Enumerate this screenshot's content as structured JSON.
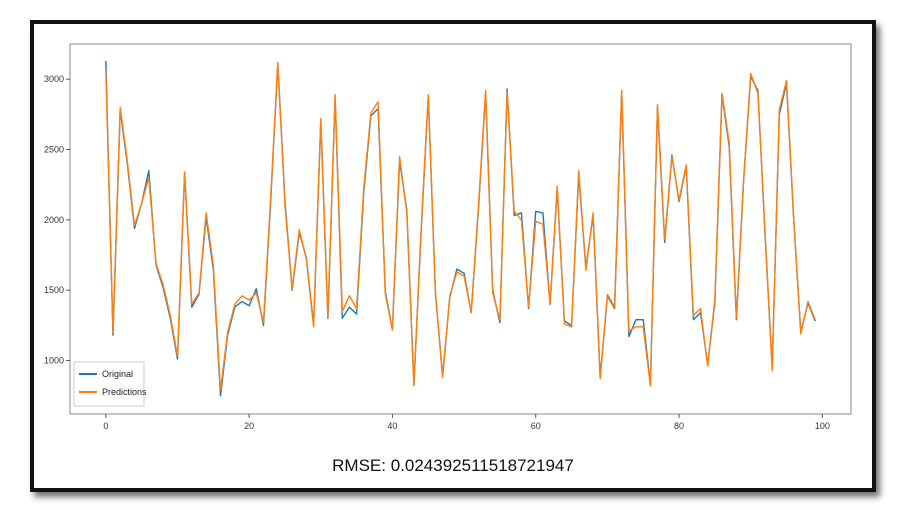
{
  "caption": "RMSE: 0.024392511518721947",
  "chart_data": {
    "type": "line",
    "x": [
      0,
      1,
      2,
      3,
      4,
      5,
      6,
      7,
      8,
      9,
      10,
      11,
      12,
      13,
      14,
      15,
      16,
      17,
      18,
      19,
      20,
      21,
      22,
      23,
      24,
      25,
      26,
      27,
      28,
      29,
      30,
      31,
      32,
      33,
      34,
      35,
      36,
      37,
      38,
      39,
      40,
      41,
      42,
      43,
      44,
      45,
      46,
      47,
      48,
      49,
      50,
      51,
      52,
      53,
      54,
      55,
      56,
      57,
      58,
      59,
      60,
      61,
      62,
      63,
      64,
      65,
      66,
      67,
      68,
      69,
      70,
      71,
      72,
      73,
      74,
      75,
      76,
      77,
      78,
      79,
      80,
      81,
      82,
      83,
      84,
      85,
      86,
      87,
      88,
      89,
      90,
      91,
      92,
      93,
      94,
      95,
      96,
      97,
      98,
      99
    ],
    "series": [
      {
        "name": "Original",
        "color": "#1f77b4",
        "values": [
          3130,
          1180,
          2780,
          2400,
          1940,
          2120,
          2350,
          1680,
          1520,
          1300,
          1010,
          2330,
          1380,
          1470,
          2020,
          1650,
          750,
          1180,
          1380,
          1420,
          1390,
          1510,
          1250,
          2120,
          3110,
          2130,
          1500,
          1910,
          1730,
          1250,
          2700,
          1300,
          2870,
          1300,
          1380,
          1330,
          2200,
          2740,
          2790,
          1490,
          1220,
          2420,
          2070,
          830,
          1910,
          2880,
          1480,
          890,
          1450,
          1650,
          1620,
          1340,
          2070,
          2900,
          1500,
          1270,
          2930,
          2030,
          2050,
          1370,
          2060,
          2050,
          1400,
          2220,
          1280,
          1250,
          2320,
          1660,
          2030,
          880,
          1460,
          1370,
          2910,
          1170,
          1290,
          1290,
          830,
          2800,
          1840,
          2460,
          2130,
          2380,
          1290,
          1340,
          970,
          1420,
          2890,
          2520,
          1290,
          2270,
          3020,
          2920,
          1900,
          950,
          2750,
          2970,
          2000,
          1200,
          1410,
          1280
        ]
      },
      {
        "name": "Predictions",
        "color": "#ff7f0e",
        "values": [
          3060,
          1200,
          2800,
          2420,
          1960,
          2120,
          2300,
          1690,
          1540,
          1320,
          1030,
          2340,
          1400,
          1480,
          2050,
          1680,
          790,
          1200,
          1400,
          1460,
          1430,
          1480,
          1270,
          2150,
          3120,
          2100,
          1510,
          1930,
          1720,
          1240,
          2720,
          1310,
          2890,
          1350,
          1460,
          1370,
          2230,
          2760,
          2840,
          1470,
          1220,
          2450,
          2050,
          820,
          1930,
          2890,
          1490,
          880,
          1460,
          1630,
          1600,
          1340,
          2090,
          2920,
          1480,
          1290,
          2910,
          2060,
          2000,
          1380,
          1990,
          1970,
          1400,
          2240,
          1260,
          1240,
          2350,
          1640,
          2050,
          870,
          1470,
          1380,
          2920,
          1210,
          1240,
          1240,
          820,
          2820,
          1860,
          2450,
          2140,
          2390,
          1320,
          1370,
          960,
          1440,
          2900,
          2550,
          1300,
          2260,
          3040,
          2900,
          1920,
          930,
          2780,
          2990,
          2010,
          1190,
          1420,
          1290
        ]
      }
    ],
    "xticks": [
      0,
      20,
      40,
      60,
      80,
      100
    ],
    "yticks": [
      1000,
      1500,
      2000,
      2500,
      3000
    ],
    "xlim": [
      -5,
      104
    ],
    "ylim": [
      620,
      3250
    ],
    "legend": {
      "placement": "lower-left",
      "entries": [
        "Original",
        "Predictions"
      ]
    },
    "grid": false
  }
}
